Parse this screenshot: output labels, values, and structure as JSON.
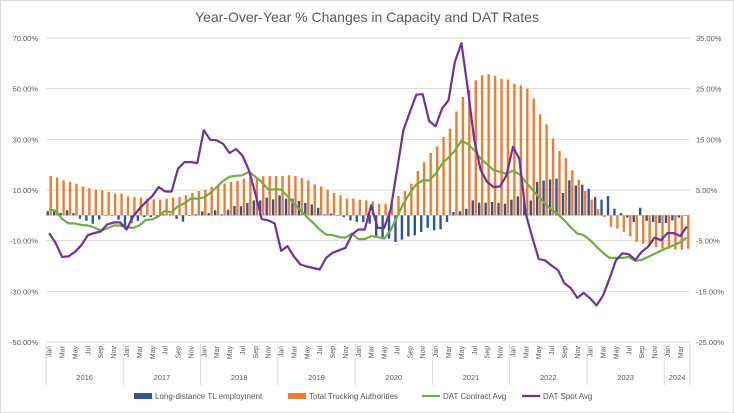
{
  "chart_data": {
    "type": "bar+line",
    "title": "Year-Over-Year % Changes in Capacity and DAT Rates",
    "xlabel": "",
    "ylabel": "",
    "x_start": "2016-01",
    "x_end": "2024-04",
    "month_labels": [
      "Jan",
      "Mar",
      "May",
      "Jul",
      "Sep",
      "Nov"
    ],
    "years": [
      "2016",
      "2017",
      "2018",
      "2019",
      "2020",
      "2021",
      "2022",
      "2023",
      "2024"
    ],
    "y_left": {
      "lim": [
        -50,
        70
      ],
      "ticks": [
        "70.00%",
        "50.00%",
        "30.00%",
        "10.00%",
        "-10.00%",
        "-30.00%",
        "-50.00%"
      ],
      "tick_values": [
        70,
        50,
        30,
        10,
        -10,
        -30,
        -50
      ]
    },
    "y_right": {
      "lim": [
        -25,
        35
      ],
      "ticks": [
        "35.00%",
        "25.00%",
        "15.00%",
        "5.00%",
        "-5.00%",
        "-15.00%",
        "-25.00%"
      ],
      "tick_values": [
        35,
        25,
        15,
        5,
        -5,
        -15,
        -25
      ]
    },
    "grid": true,
    "legend_position": "bottom",
    "series": [
      {
        "name": "Long-distance TL employment",
        "kind": "bar",
        "axis": "left",
        "color": "#2f5597",
        "values": [
          1.6,
          1.6,
          0.9,
          2.0,
          0.9,
          -1.3,
          -2.2,
          -3.3,
          -1.7,
          0,
          -0.1,
          -1.7,
          -4.6,
          -3.0,
          -2.2,
          -0.7,
          -0.7,
          -0.4,
          0.4,
          0.4,
          -1.4,
          -2.5,
          0,
          0.4,
          1.6,
          0.9,
          2.0,
          0.4,
          2.2,
          3.7,
          3.6,
          4.9,
          5.9,
          5.9,
          7.0,
          6.3,
          7.9,
          6.6,
          6.6,
          5.7,
          4.9,
          4.3,
          3.0,
          0.4,
          0.7,
          -0.1,
          -0.7,
          -2.0,
          -2.6,
          -2.6,
          -3.3,
          -8.3,
          -8.6,
          -9.2,
          -10.5,
          -9.6,
          -8.3,
          -7.9,
          -6.6,
          -4.9,
          -5.9,
          -5.5,
          -2.6,
          1.3,
          1.6,
          2.6,
          5.9,
          5.0,
          5.0,
          5.3,
          4.9,
          4.6,
          6.2,
          7.5,
          5.5,
          5.9,
          13.2,
          13.8,
          14.2,
          14.5,
          8.8,
          13.8,
          11.8,
          12.1,
          10.5,
          7.2,
          6.2,
          7.6,
          2.6,
          0.9,
          -0.9,
          -2.6,
          3.0,
          -2.2,
          -2.6,
          -3.0,
          -3.0,
          -2.0,
          -0.9,
          -0.2
        ]
      },
      {
        "name": "Total Trucking Authorities",
        "kind": "bar",
        "axis": "left",
        "color": "#ed7d31",
        "values": [
          15.5,
          14.9,
          13.8,
          13.2,
          12.5,
          11.4,
          10.7,
          10.1,
          9.9,
          9.3,
          8.6,
          8.6,
          7.5,
          7.2,
          7.0,
          6.6,
          6.3,
          6.2,
          6.6,
          7.0,
          7.2,
          7.9,
          8.8,
          9.6,
          10.1,
          11.2,
          11.8,
          12.5,
          13.2,
          13.6,
          14.5,
          15.1,
          15.1,
          15.4,
          15.5,
          15.5,
          15.5,
          15.8,
          15.5,
          14.7,
          13.8,
          12.2,
          11.4,
          10.1,
          8.8,
          7.9,
          6.6,
          6.6,
          6.2,
          5.9,
          5.5,
          4.6,
          4.6,
          5.0,
          7.6,
          9.5,
          12.5,
          17.5,
          21.0,
          24.6,
          27.2,
          30.9,
          34.2,
          41.0,
          46.7,
          49.6,
          53.3,
          55.3,
          55.7,
          55.1,
          53.9,
          53.6,
          52.0,
          51.3,
          50.0,
          46.0,
          39.9,
          35.9,
          30.3,
          25.4,
          22.6,
          17.8,
          14.1,
          9.6,
          6.2,
          2.4,
          -0.7,
          -4.6,
          -5.3,
          -6.6,
          -8.3,
          -10.5,
          -11.2,
          -11.8,
          -12.5,
          -13.2,
          -13.2,
          -13.6,
          -13.6,
          -13.2
        ]
      },
      {
        "name": "DAT Contract Avg",
        "kind": "line",
        "axis": "right",
        "color": "#70ad47",
        "values": [
          1.2,
          0.9,
          -0.7,
          -1.6,
          -1.6,
          -1.9,
          -2.0,
          -2.4,
          -3.0,
          -2.6,
          -2.0,
          -2.0,
          -2.3,
          -2.5,
          -2.0,
          -0.9,
          -0.8,
          -0.2,
          0.9,
          0.6,
          1.8,
          2.4,
          3.3,
          3.3,
          3.5,
          4.4,
          5.6,
          6.8,
          7.6,
          7.8,
          7.9,
          8.6,
          7.6,
          6.6,
          5.1,
          5.1,
          5.1,
          3.8,
          2.3,
          1.0,
          -0.3,
          -1.5,
          -2.8,
          -3.8,
          -3.9,
          -4.3,
          -4.4,
          -3.6,
          -4.7,
          -4.7,
          -4.1,
          -4.3,
          -4.6,
          -3.0,
          -0.3,
          2.3,
          4.4,
          6.1,
          6.9,
          6.9,
          8.2,
          10.2,
          11.4,
          12.8,
          14.7,
          14.1,
          12.8,
          11.2,
          10.1,
          8.9,
          8.6,
          8.2,
          8.8,
          8.1,
          6.6,
          5.1,
          3.6,
          2.3,
          1.1,
          0.2,
          -1.0,
          -2.4,
          -3.6,
          -3.9,
          -4.9,
          -6.2,
          -7.4,
          -8.4,
          -8.4,
          -8.4,
          -8.2,
          -9.0,
          -8.8,
          -8.2,
          -7.6,
          -7.0,
          -6.4,
          -5.9,
          -5.3,
          -4.4
        ]
      },
      {
        "name": "DAT Spot Avg",
        "kind": "line",
        "axis": "right",
        "color": "#7030a0",
        "values": [
          -3.5,
          -5.5,
          -8.2,
          -8.1,
          -7.2,
          -5.9,
          -3.9,
          -3.5,
          -3.2,
          -1.8,
          -1.4,
          -1.4,
          -2.8,
          -0.3,
          1.3,
          2.6,
          3.8,
          5.6,
          4.7,
          4.7,
          9.2,
          10.5,
          10.5,
          10.3,
          16.8,
          14.9,
          14.8,
          14.1,
          12.3,
          13.1,
          11.8,
          8.9,
          4.3,
          -0.7,
          -1.0,
          -1.6,
          -7.0,
          -6.1,
          -8.1,
          -9.7,
          -10.1,
          -10.4,
          -10.7,
          -8.4,
          -7.4,
          -6.9,
          -6.4,
          -3.8,
          -2.8,
          -2.8,
          2.0,
          -2.5,
          -2.5,
          1.0,
          8.9,
          16.8,
          20.4,
          23.8,
          23.9,
          18.6,
          17.6,
          21.1,
          22.7,
          30.3,
          34.0,
          25.0,
          14.8,
          8.9,
          6.6,
          5.6,
          5.7,
          7.9,
          13.5,
          11.2,
          0.3,
          -4.3,
          -8.6,
          -8.9,
          -9.9,
          -10.8,
          -13.4,
          -14.4,
          -16.3,
          -15.3,
          -16.4,
          -17.8,
          -15.8,
          -12.5,
          -8.9,
          -7.5,
          -7.7,
          -8.8,
          -7.2,
          -6.2,
          -4.4,
          -4.9,
          -3.5,
          -3.5,
          -4.1,
          -2.2
        ]
      }
    ]
  }
}
